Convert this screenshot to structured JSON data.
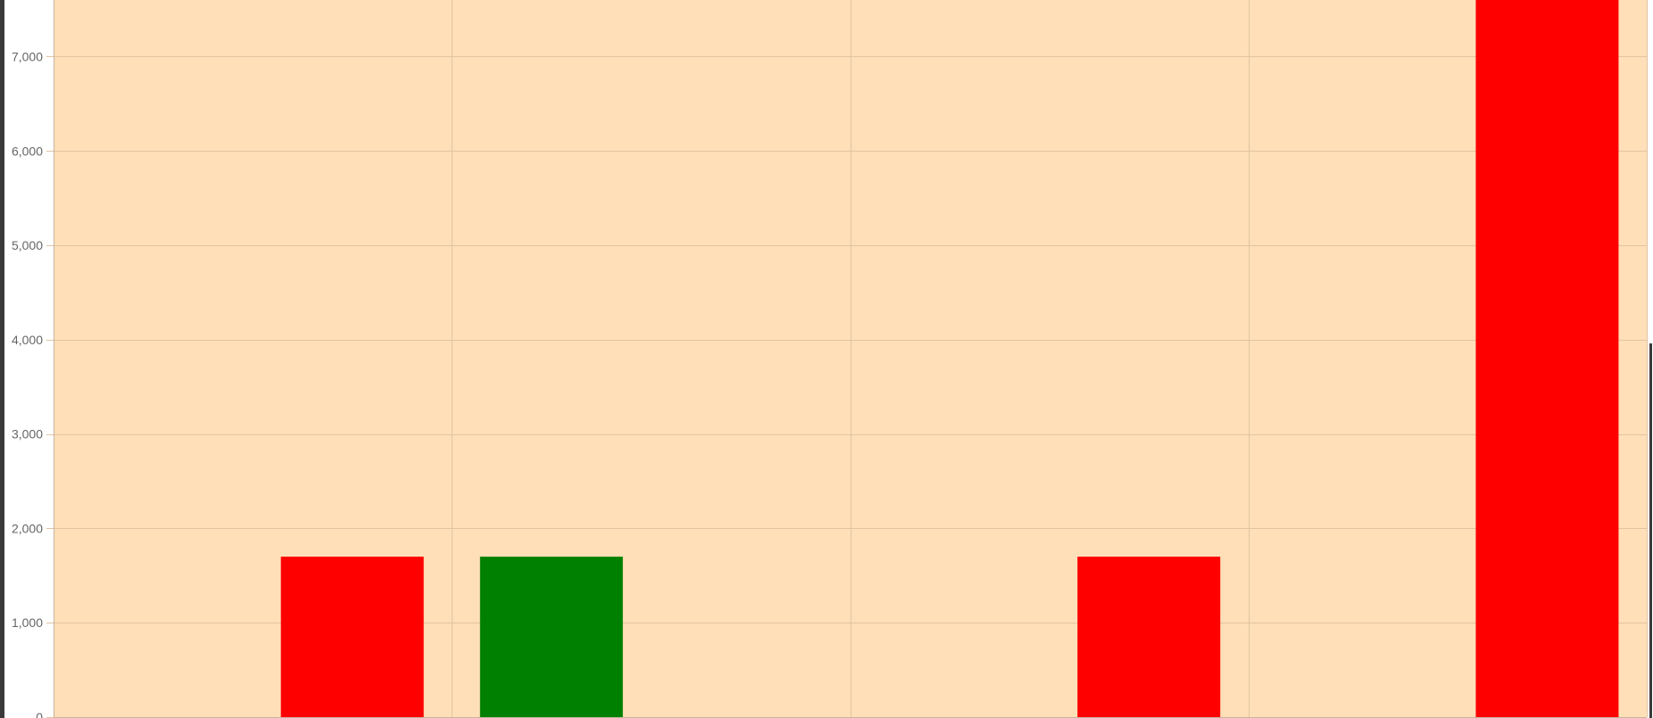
{
  "chart_data": {
    "type": "bar",
    "title": "",
    "xlabel": "",
    "ylabel": "",
    "categories": [
      "",
      "",
      "",
      ""
    ],
    "slots_per_category": 2,
    "bars": [
      {
        "category_index": 0,
        "slot": 1,
        "value": 1700,
        "color": "#ff0000"
      },
      {
        "category_index": 1,
        "slot": 0,
        "value": 1700,
        "color": "#008000"
      },
      {
        "category_index": 2,
        "slot": 1,
        "value": 1700,
        "color": "#ff0000"
      },
      {
        "category_index": 3,
        "slot": 1,
        "value": 7600,
        "color": "#ff0000"
      }
    ],
    "ylim": [
      0,
      7600
    ],
    "yticks": [
      0,
      1000,
      2000,
      3000,
      4000,
      5000,
      6000,
      7000
    ],
    "ytick_labels": [
      "0",
      "1,000",
      "2,000",
      "3,000",
      "4,000",
      "5,000",
      "6,000",
      "7,000"
    ],
    "grid": true,
    "colors": {
      "background": "#ffdfb8",
      "grid": "#e0c4a2",
      "axis": "#c9b39b",
      "tick_text": "#666666",
      "up": "#008000",
      "down": "#ff0000"
    }
  }
}
